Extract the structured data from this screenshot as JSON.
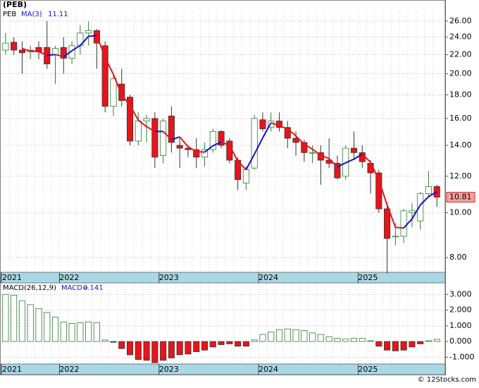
{
  "chart_data": [
    {
      "type": "candlestick",
      "title": "(PEB)",
      "log_scale": true,
      "grid": true,
      "categories": [
        "2021",
        null,
        null,
        null,
        null,
        null,
        null,
        "2022",
        null,
        null,
        null,
        null,
        null,
        null,
        null,
        null,
        null,
        null,
        null,
        "2023",
        null,
        null,
        null,
        null,
        null,
        null,
        null,
        null,
        null,
        null,
        null,
        "2024",
        null,
        null,
        null,
        null,
        null,
        null,
        null,
        null,
        null,
        null,
        null,
        "2025",
        null,
        null,
        null,
        null,
        null,
        null,
        null,
        null,
        null
      ],
      "open": [
        22.5,
        23.4,
        22.5,
        22.3,
        22.8,
        22.8,
        22.0,
        22.8,
        21.6,
        23.0,
        24.5,
        24.8,
        23.0,
        17.0,
        19.0,
        17.8,
        14.3,
        15.8,
        16.0,
        13.3,
        16.2,
        14.0,
        13.8,
        13.7,
        13.2,
        13.7,
        15.0,
        14.3,
        13.0,
        11.6,
        12.5,
        15.9,
        15.3,
        15.8,
        15.3,
        14.5,
        14.2,
        13.5,
        13.5,
        13.0,
        12.8,
        12.0,
        13.8,
        13.5,
        12.8,
        12.2,
        10.2,
        8.9,
        8.9,
        10.0,
        9.6,
        11.0,
        11.4
      ],
      "high": [
        24.5,
        24.0,
        23.5,
        23.0,
        23.5,
        26.0,
        23.0,
        24.0,
        23.5,
        25.5,
        26.0,
        25.0,
        23.5,
        20.0,
        20.5,
        18.0,
        16.5,
        16.3,
        16.5,
        16.0,
        17.0,
        14.5,
        14.0,
        14.5,
        14.2,
        15.2,
        15.1,
        14.5,
        13.2,
        12.6,
        16.3,
        16.5,
        16.5,
        16.5,
        15.8,
        15.0,
        14.4,
        14.0,
        14.0,
        14.5,
        13.3,
        14.0,
        15.0,
        14.0,
        13.0,
        12.4,
        10.5,
        9.5,
        10.2,
        10.5,
        11.1,
        12.3,
        11.5
      ],
      "low": [
        22.0,
        22.0,
        20.0,
        21.5,
        21.5,
        20.5,
        19.0,
        20.0,
        21.0,
        22.0,
        23.0,
        20.5,
        16.5,
        16.2,
        17.0,
        14.0,
        14.0,
        14.2,
        12.5,
        12.8,
        13.5,
        12.5,
        13.2,
        12.5,
        12.6,
        13.5,
        13.8,
        12.8,
        11.2,
        11.2,
        12.4,
        15.0,
        15.0,
        15.0,
        13.8,
        13.3,
        12.9,
        12.8,
        11.5,
        12.5,
        11.8,
        11.8,
        13.0,
        12.5,
        11.0,
        10.0,
        7.4,
        8.5,
        8.6,
        9.3,
        9.2,
        10.8,
        10.3
      ],
      "close": [
        23.3,
        22.5,
        22.2,
        22.5,
        22.3,
        21.0,
        22.7,
        21.6,
        23.0,
        24.5,
        24.8,
        23.3,
        17.0,
        19.5,
        17.5,
        14.3,
        15.8,
        16.0,
        13.2,
        15.8,
        14.2,
        13.8,
        13.7,
        13.2,
        13.7,
        15.0,
        14.0,
        13.0,
        11.8,
        12.4,
        16.0,
        15.2,
        15.8,
        15.3,
        14.5,
        14.2,
        13.5,
        13.5,
        13.0,
        12.8,
        11.9,
        13.8,
        13.5,
        12.9,
        12.2,
        10.2,
        8.8,
        8.9,
        10.1,
        10.1,
        11.0,
        11.4,
        10.81
      ],
      "up_color": "#2e7d32",
      "down_color": "#e8141a",
      "ma": {
        "name": "MA(3)",
        "rise_color": "#1010d0",
        "fall_color": "#e8141a",
        "values": [
          null,
          null,
          22.67,
          22.4,
          22.33,
          21.93,
          22.0,
          21.77,
          22.43,
          23.03,
          24.1,
          24.2,
          21.7,
          19.93,
          18.0,
          17.1,
          15.87,
          15.37,
          15.0,
          15.0,
          14.4,
          14.6,
          13.9,
          13.57,
          13.53,
          13.97,
          14.23,
          14.0,
          12.93,
          12.4,
          13.4,
          14.53,
          15.67,
          15.43,
          15.2,
          14.67,
          14.07,
          13.73,
          13.33,
          13.1,
          12.57,
          12.83,
          13.07,
          13.4,
          12.87,
          11.77,
          10.4,
          9.3,
          9.27,
          9.7,
          10.4,
          10.84,
          11.11
        ]
      },
      "ylim": [
        7.46,
        27.4
      ],
      "yticks": [
        {
          "value": 8,
          "label": "8.00"
        },
        {
          "value": 10,
          "label": "10.00"
        },
        {
          "value": 12,
          "label": "12.00"
        },
        {
          "value": 14,
          "label": "14.00"
        },
        {
          "value": 16,
          "label": "16.00"
        },
        {
          "value": 18,
          "label": "18.00"
        },
        {
          "value": 20,
          "label": "20.00"
        },
        {
          "value": 22,
          "label": "22.00"
        },
        {
          "value": 24,
          "label": "24.00"
        },
        {
          "value": 26,
          "label": "26.00"
        }
      ],
      "watermark": "© 12Stocks.com"
    },
    {
      "type": "bar",
      "name": "MACD(26,12,9)",
      "value_prefix": "MACD=",
      "grid": true,
      "categories": [
        "2021",
        null,
        null,
        null,
        null,
        null,
        null,
        "2022",
        null,
        null,
        null,
        null,
        null,
        null,
        null,
        null,
        null,
        null,
        null,
        "2023",
        null,
        null,
        null,
        null,
        null,
        null,
        null,
        null,
        null,
        null,
        null,
        "2024",
        null,
        null,
        null,
        null,
        null,
        null,
        null,
        null,
        null,
        null,
        null,
        "2025",
        null,
        null,
        null,
        null,
        null,
        null,
        null,
        null,
        null
      ],
      "values": [
        3.0,
        2.95,
        2.6,
        2.35,
        2.1,
        1.85,
        1.55,
        1.25,
        1.15,
        1.2,
        1.25,
        1.2,
        0.1,
        -0.05,
        -0.45,
        -0.85,
        -1.15,
        -1.2,
        -1.35,
        -1.2,
        -1.05,
        -0.85,
        -0.8,
        -0.65,
        -0.55,
        -0.35,
        -0.2,
        -0.15,
        -0.3,
        -0.3,
        0.1,
        0.45,
        0.6,
        0.75,
        0.8,
        0.75,
        0.7,
        0.55,
        0.45,
        0.3,
        0.2,
        0.15,
        0.2,
        0.2,
        0.05,
        -0.3,
        -0.55,
        -0.6,
        -0.55,
        -0.35,
        -0.15,
        0.05,
        0.141
      ],
      "pos_color": "#2e7d32",
      "neg_color": "#e8141a",
      "ylim": [
        -1.39,
        3.69
      ],
      "yticks": [
        {
          "value": -1,
          "label": "-1.000"
        },
        {
          "value": 0,
          "label": "0.000"
        },
        {
          "value": 1,
          "label": "1.000"
        },
        {
          "value": 2,
          "label": "2.000"
        },
        {
          "value": 3,
          "label": "3.000"
        }
      ]
    }
  ]
}
